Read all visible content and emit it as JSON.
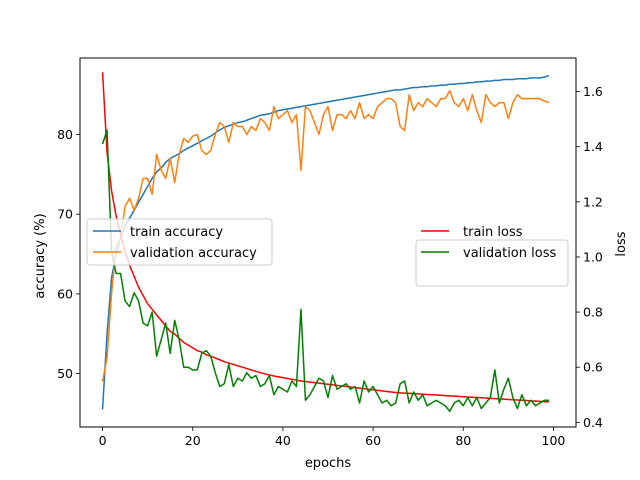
{
  "chart_data": {
    "type": "line",
    "xlabel": "epochs",
    "ylabel_left": "accuracy (%)",
    "ylabel_right": "loss",
    "xlim": [
      -5,
      105
    ],
    "ylim_left": [
      43.3,
      89.6
    ],
    "ylim_right": [
      0.383,
      1.722
    ],
    "grid": false,
    "x_ticks": [
      0,
      20,
      40,
      60,
      80,
      100
    ],
    "y_ticks_left": [
      50,
      60,
      70,
      80
    ],
    "y_ticks_right": [
      0.4,
      0.6,
      0.8,
      1.0,
      1.2,
      1.4,
      1.6
    ],
    "legend_left": {
      "placement": "center-left",
      "entries": [
        "train accuracy",
        "validation accuracy"
      ]
    },
    "legend_right": {
      "placement": "center-right",
      "entries": [
        "train loss",
        "validation loss"
      ]
    },
    "x": [
      0,
      1,
      2,
      3,
      4,
      5,
      6,
      7,
      8,
      9,
      10,
      11,
      12,
      13,
      14,
      15,
      16,
      17,
      18,
      19,
      20,
      21,
      22,
      23,
      24,
      25,
      26,
      27,
      28,
      29,
      30,
      31,
      32,
      33,
      34,
      35,
      36,
      37,
      38,
      39,
      40,
      41,
      42,
      43,
      44,
      45,
      46,
      47,
      48,
      49,
      50,
      51,
      52,
      53,
      54,
      55,
      56,
      57,
      58,
      59,
      60,
      61,
      62,
      63,
      64,
      65,
      66,
      67,
      68,
      69,
      70,
      71,
      72,
      73,
      74,
      75,
      76,
      77,
      78,
      79,
      80,
      81,
      82,
      83,
      84,
      85,
      86,
      87,
      88,
      89,
      90,
      91,
      92,
      93,
      94,
      95,
      96,
      97,
      98,
      99
    ],
    "series": [
      {
        "name": "train accuracy",
        "axis": "left",
        "color": "#1f77b4",
        "values": [
          45.5,
          55.0,
          62.0,
          65.0,
          67.0,
          68.5,
          69.5,
          70.5,
          71.5,
          72.5,
          73.5,
          74.5,
          75.3,
          75.8,
          76.5,
          77.0,
          77.3,
          77.6,
          78.0,
          78.3,
          78.6,
          78.9,
          79.2,
          79.5,
          79.8,
          80.2,
          80.6,
          80.9,
          81.1,
          81.3,
          81.5,
          81.6,
          81.8,
          82.0,
          82.2,
          82.4,
          82.5,
          82.6,
          82.8,
          83.0,
          83.1,
          83.2,
          83.3,
          83.4,
          83.5,
          83.6,
          83.7,
          83.8,
          83.9,
          84.0,
          84.1,
          84.2,
          84.3,
          84.4,
          84.5,
          84.6,
          84.7,
          84.8,
          84.9,
          85.0,
          85.1,
          85.2,
          85.3,
          85.4,
          85.5,
          85.6,
          85.6,
          85.7,
          85.8,
          85.9,
          85.9,
          86.0,
          86.0,
          86.1,
          86.1,
          86.2,
          86.2,
          86.3,
          86.3,
          86.4,
          86.4,
          86.5,
          86.5,
          86.6,
          86.6,
          86.7,
          86.7,
          86.8,
          86.8,
          86.9,
          86.9,
          86.9,
          87.0,
          87.0,
          87.0,
          87.1,
          87.1,
          87.1,
          87.2,
          87.4
        ]
      },
      {
        "name": "validation accuracy",
        "axis": "left",
        "color": "#ff7f0e",
        "values": [
          49.0,
          52.0,
          60.0,
          66.0,
          67.0,
          71.0,
          72.0,
          70.5,
          72.0,
          74.5,
          74.5,
          72.5,
          77.5,
          75.5,
          74.5,
          77.0,
          74.0,
          77.5,
          79.5,
          79.0,
          79.8,
          80.0,
          78.0,
          77.5,
          78.0,
          80.0,
          81.5,
          81.0,
          79.0,
          81.5,
          81.0,
          81.0,
          80.0,
          81.0,
          80.5,
          82.0,
          81.5,
          80.5,
          83.5,
          82.0,
          82.5,
          83.0,
          81.5,
          82.5,
          75.5,
          83.5,
          83.0,
          81.5,
          80.0,
          82.5,
          83.5,
          80.5,
          82.5,
          82.5,
          82.0,
          83.0,
          82.0,
          84.0,
          82.0,
          82.5,
          82.0,
          83.5,
          84.0,
          84.5,
          84.5,
          84.0,
          81.0,
          80.5,
          85.0,
          83.0,
          84.0,
          83.5,
          84.5,
          84.0,
          83.5,
          84.5,
          84.5,
          85.5,
          84.0,
          83.5,
          84.5,
          83.0,
          85.0,
          83.0,
          81.5,
          85.0,
          84.0,
          83.5,
          84.0,
          84.0,
          82.0,
          84.0,
          85.0,
          84.5,
          84.5,
          84.5,
          84.5,
          84.5,
          84.2,
          84.0
        ]
      },
      {
        "name": "train loss",
        "axis": "right",
        "color": "#ff0000",
        "values": [
          1.67,
          1.38,
          1.24,
          1.15,
          1.08,
          1.02,
          0.97,
          0.93,
          0.89,
          0.86,
          0.83,
          0.81,
          0.79,
          0.77,
          0.75,
          0.73,
          0.72,
          0.705,
          0.69,
          0.68,
          0.67,
          0.66,
          0.655,
          0.645,
          0.64,
          0.633,
          0.627,
          0.62,
          0.615,
          0.61,
          0.605,
          0.6,
          0.595,
          0.59,
          0.585,
          0.58,
          0.576,
          0.572,
          0.568,
          0.565,
          0.562,
          0.559,
          0.556,
          0.553,
          0.55,
          0.548,
          0.546,
          0.544,
          0.542,
          0.54,
          0.538,
          0.536,
          0.534,
          0.532,
          0.53,
          0.528,
          0.526,
          0.524,
          0.522,
          0.52,
          0.518,
          0.516,
          0.514,
          0.512,
          0.51,
          0.508,
          0.507,
          0.506,
          0.505,
          0.504,
          0.503,
          0.502,
          0.501,
          0.5,
          0.499,
          0.498,
          0.497,
          0.496,
          0.495,
          0.494,
          0.493,
          0.492,
          0.491,
          0.49,
          0.489,
          0.488,
          0.487,
          0.486,
          0.485,
          0.484,
          0.483,
          0.482,
          0.481,
          0.48,
          0.479,
          0.478,
          0.477,
          0.476,
          0.475,
          0.474
        ]
      },
      {
        "name": "validation loss",
        "axis": "right",
        "color": "#008000",
        "values": [
          1.41,
          1.46,
          1.02,
          0.94,
          0.94,
          0.84,
          0.82,
          0.87,
          0.84,
          0.76,
          0.75,
          0.8,
          0.64,
          0.7,
          0.76,
          0.65,
          0.77,
          0.7,
          0.6,
          0.6,
          0.59,
          0.59,
          0.65,
          0.66,
          0.64,
          0.58,
          0.53,
          0.54,
          0.61,
          0.53,
          0.56,
          0.55,
          0.58,
          0.56,
          0.57,
          0.53,
          0.54,
          0.57,
          0.5,
          0.53,
          0.52,
          0.51,
          0.55,
          0.53,
          0.81,
          0.48,
          0.5,
          0.53,
          0.56,
          0.55,
          0.49,
          0.57,
          0.52,
          0.53,
          0.54,
          0.52,
          0.53,
          0.47,
          0.55,
          0.51,
          0.53,
          0.5,
          0.47,
          0.48,
          0.46,
          0.47,
          0.54,
          0.55,
          0.47,
          0.51,
          0.48,
          0.5,
          0.46,
          0.47,
          0.48,
          0.47,
          0.46,
          0.44,
          0.47,
          0.48,
          0.46,
          0.49,
          0.46,
          0.49,
          0.45,
          0.47,
          0.49,
          0.59,
          0.47,
          0.52,
          0.56,
          0.49,
          0.45,
          0.5,
          0.46,
          0.48,
          0.46,
          0.47,
          0.48,
          0.48
        ]
      }
    ]
  }
}
